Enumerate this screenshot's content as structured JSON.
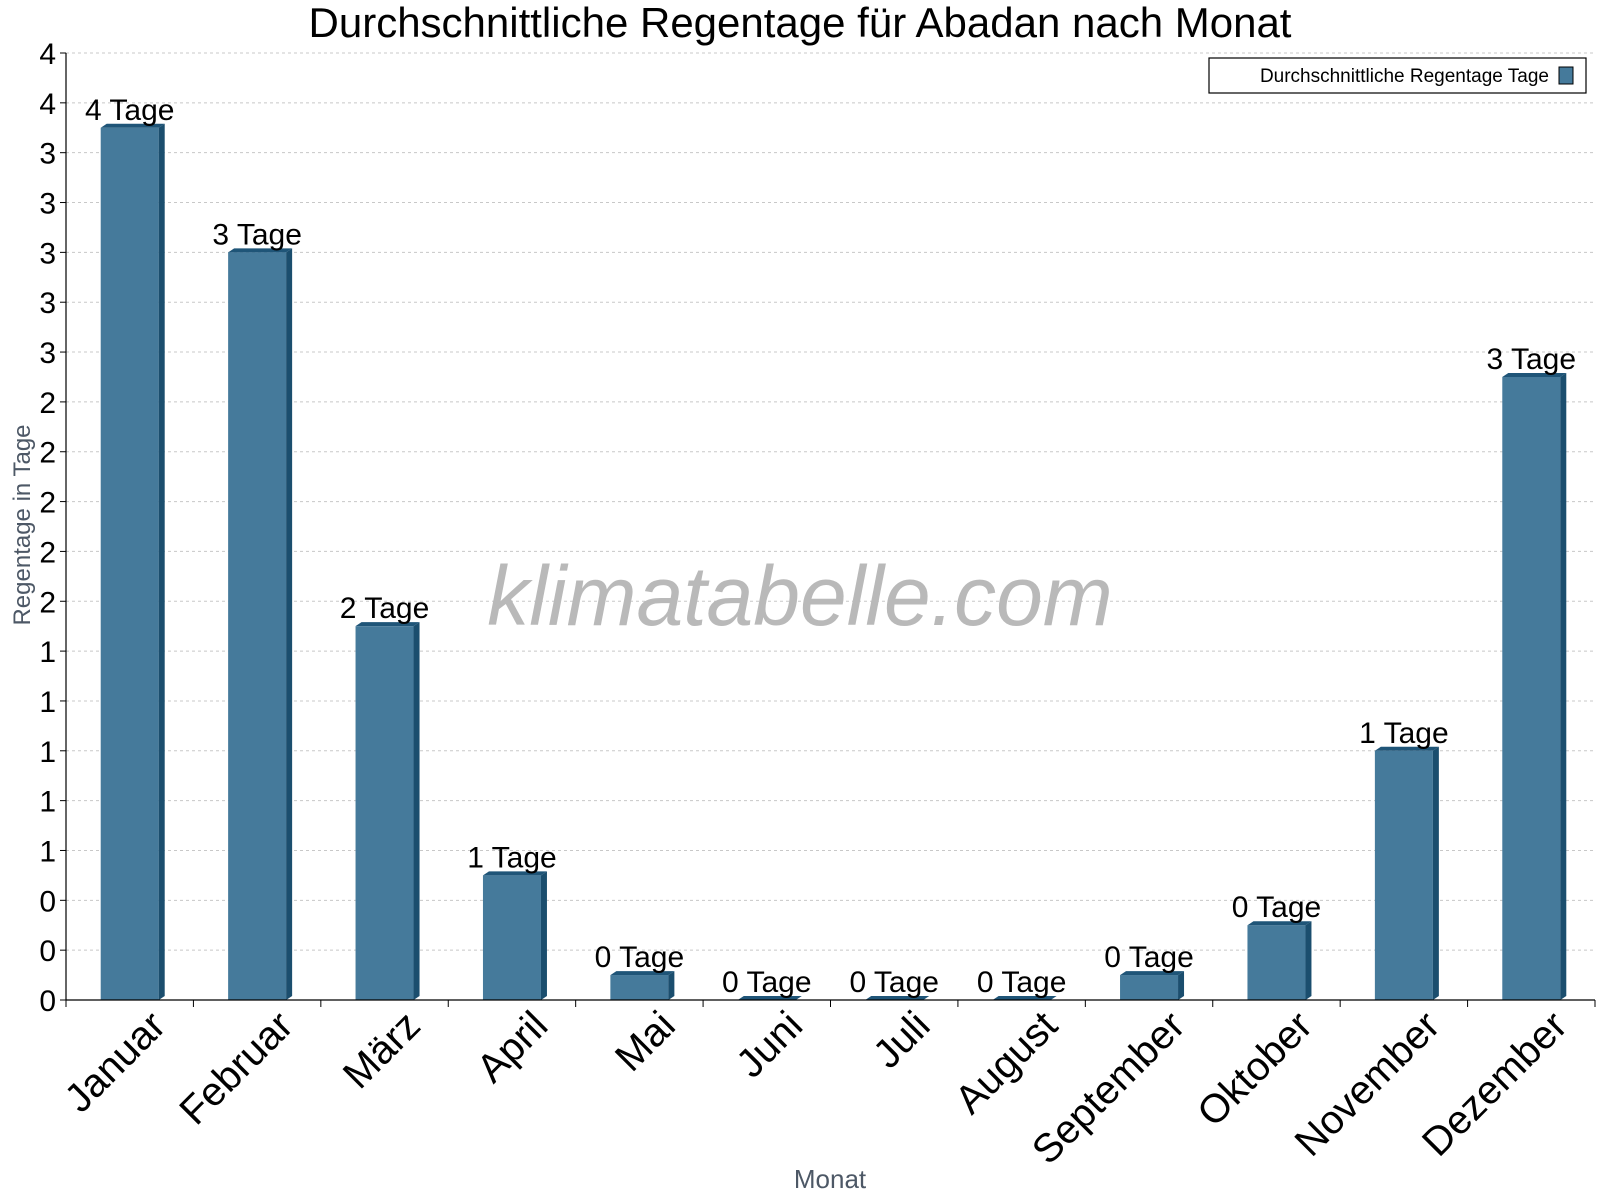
{
  "chart_data": {
    "type": "bar",
    "title": "Durchschnittliche Regentage für Abadan nach Monat",
    "xlabel": "Monat",
    "ylabel": "Regentage in Tage",
    "watermark": "klimatabelle.com",
    "legend": {
      "label": "Durchschnittliche Regentage Tage",
      "position": "top-right"
    },
    "categories": [
      "Januar",
      "Februar",
      "März",
      "April",
      "Mai",
      "Juni",
      "Juli",
      "August",
      "September",
      "Oktober",
      "November",
      "Dezember"
    ],
    "series": [
      {
        "name": "Durchschnittliche Regentage Tage",
        "values": [
          3.5,
          3.0,
          1.5,
          0.5,
          0.1,
          0.0,
          0.0,
          0.0,
          0.1,
          0.3,
          1.0,
          2.5
        ],
        "labels": [
          "4 Tage",
          "3 Tage",
          "2 Tage",
          "1 Tage",
          "0 Tage",
          "0 Tage",
          "0 Tage",
          "0 Tage",
          "0 Tage",
          "0 Tage",
          "1 Tage",
          "3 Tage"
        ]
      }
    ],
    "ylim": [
      0,
      3.8
    ],
    "yticks": [
      0,
      0.2,
      0.4,
      0.6,
      0.8,
      1.0,
      1.2,
      1.4,
      1.6,
      1.8,
      2.0,
      2.2,
      2.4,
      2.6,
      2.8,
      3.0,
      3.2,
      3.4,
      3.6,
      3.8
    ],
    "ytick_labels": [
      "0",
      "0",
      "0",
      "1",
      "1",
      "1",
      "1",
      "1",
      "2",
      "2",
      "2",
      "2",
      "2",
      "3",
      "3",
      "3",
      "3",
      "3",
      "4",
      "4"
    ],
    "grid": true,
    "colors": {
      "bar": "#457a9b",
      "bar_side": "#1b4e6e",
      "bar_top": "#1f5578",
      "grid": "#c8c8c8"
    }
  }
}
